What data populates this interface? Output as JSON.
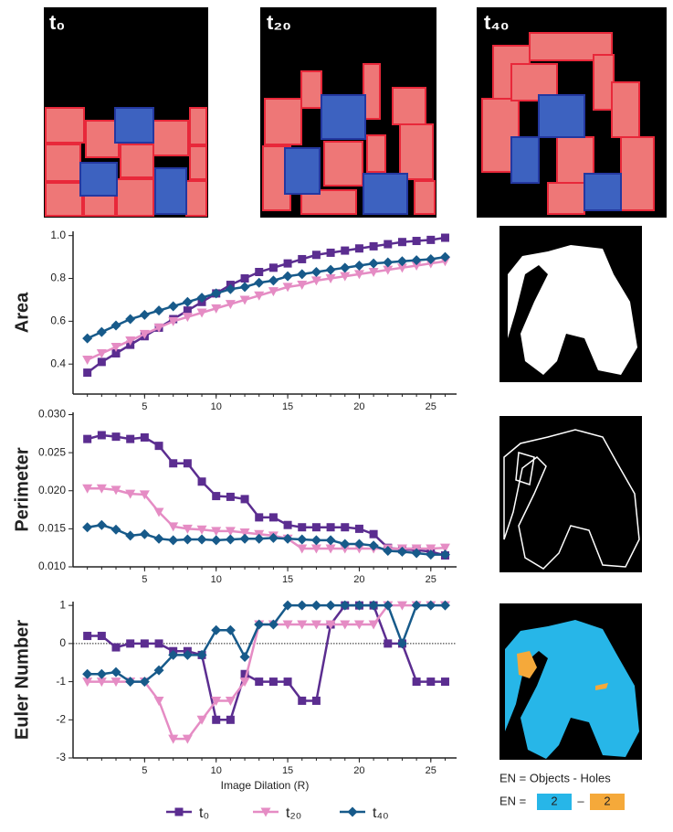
{
  "panels": [
    "t₀",
    "t₂₀",
    "t₄₀"
  ],
  "en_formula": {
    "definition": "EN = Objects - Holes",
    "prefix": "EN =",
    "objects": "2",
    "dash": "–",
    "holes": "2"
  },
  "chart_data": [
    {
      "type": "line",
      "ylabel": "Area",
      "x": [
        1,
        2,
        3,
        4,
        5,
        6,
        7,
        8,
        9,
        10,
        11,
        12,
        13,
        14,
        15,
        16,
        17,
        18,
        19,
        20,
        21,
        22,
        23,
        24,
        25,
        26
      ],
      "xlim": [
        0,
        26.8
      ],
      "xticks": [
        5,
        10,
        15,
        20,
        25
      ],
      "ylim": [
        0.26,
        1.02
      ],
      "yticks": [
        0.4,
        0.6,
        0.8,
        {
          "value": 1,
          "label": "1.0"
        }
      ],
      "series": [
        {
          "color": "#5b2d90",
          "marker": "square",
          "values": [
            0.36,
            0.41,
            0.45,
            0.49,
            0.53,
            0.57,
            0.61,
            0.65,
            0.69,
            0.73,
            0.77,
            0.8,
            0.83,
            0.85,
            0.87,
            0.89,
            0.91,
            0.92,
            0.93,
            0.94,
            0.95,
            0.96,
            0.97,
            0.975,
            0.98,
            0.99
          ]
        },
        {
          "color": "#e58cc4",
          "marker": "triangle-down",
          "values": [
            0.42,
            0.45,
            0.48,
            0.51,
            0.54,
            0.57,
            0.6,
            0.62,
            0.64,
            0.66,
            0.68,
            0.7,
            0.72,
            0.74,
            0.76,
            0.77,
            0.79,
            0.8,
            0.81,
            0.82,
            0.83,
            0.84,
            0.85,
            0.86,
            0.87,
            0.88
          ]
        },
        {
          "color": "#175a8a",
          "marker": "diamond",
          "values": [
            0.52,
            0.55,
            0.58,
            0.61,
            0.63,
            0.65,
            0.67,
            0.69,
            0.71,
            0.73,
            0.75,
            0.76,
            0.78,
            0.79,
            0.81,
            0.82,
            0.83,
            0.84,
            0.85,
            0.86,
            0.87,
            0.875,
            0.88,
            0.885,
            0.89,
            0.9
          ]
        }
      ]
    },
    {
      "type": "line",
      "ylabel": "Perimeter",
      "x": [
        1,
        2,
        3,
        4,
        5,
        6,
        7,
        8,
        9,
        10,
        11,
        12,
        13,
        14,
        15,
        16,
        17,
        18,
        19,
        20,
        21,
        22,
        23,
        24,
        25,
        26
      ],
      "xlim": [
        0,
        26.8
      ],
      "xticks": [
        5,
        10,
        15,
        20,
        25
      ],
      "ylim": [
        0.01,
        0.0303
      ],
      "yticks": [
        {
          "value": 0.01,
          "label": "0.010"
        },
        {
          "value": 0.015,
          "label": "0.015"
        },
        {
          "value": 0.02,
          "label": "0.020"
        },
        {
          "value": 0.025,
          "label": "0.025"
        },
        {
          "value": 0.03,
          "label": "0.030"
        }
      ],
      "series": [
        {
          "color": "#5b2d90",
          "marker": "square",
          "values": [
            0.0268,
            0.0273,
            0.0271,
            0.0268,
            0.027,
            0.0259,
            0.0236,
            0.0236,
            0.0212,
            0.0193,
            0.0192,
            0.0189,
            0.0165,
            0.0165,
            0.0155,
            0.0152,
            0.0152,
            0.0152,
            0.0152,
            0.015,
            0.0143,
            0.0125,
            0.0123,
            0.0122,
            0.012,
            0.0115
          ]
        },
        {
          "color": "#e58cc4",
          "marker": "triangle-down",
          "values": [
            0.0203,
            0.0203,
            0.0201,
            0.0196,
            0.0195,
            0.0172,
            0.0153,
            0.015,
            0.0149,
            0.0147,
            0.0147,
            0.0145,
            0.0143,
            0.0141,
            0.0137,
            0.0124,
            0.0124,
            0.0124,
            0.0124,
            0.0124,
            0.0124,
            0.0124,
            0.0124,
            0.0124,
            0.0124,
            0.0125
          ]
        },
        {
          "color": "#175a8a",
          "marker": "diamond",
          "values": [
            0.0152,
            0.0155,
            0.0149,
            0.0141,
            0.0143,
            0.0137,
            0.0135,
            0.0136,
            0.0136,
            0.0135,
            0.0136,
            0.0137,
            0.0137,
            0.0138,
            0.0137,
            0.0136,
            0.0135,
            0.0135,
            0.013,
            0.013,
            0.0128,
            0.0121,
            0.012,
            0.0118,
            0.0116,
            0.0116
          ]
        }
      ]
    },
    {
      "type": "line",
      "ylabel": "Euler Number",
      "xlabel": "Image Dilation (R)",
      "x": [
        1,
        2,
        3,
        4,
        5,
        6,
        7,
        8,
        9,
        10,
        11,
        12,
        13,
        14,
        15,
        16,
        17,
        18,
        19,
        20,
        21,
        22,
        23,
        24,
        25,
        26
      ],
      "xlim": [
        0,
        26.8
      ],
      "xticks": [
        5,
        10,
        15,
        20,
        25
      ],
      "ylim": [
        -3,
        1.1
      ],
      "yticks": [
        -3,
        -2,
        -1,
        0,
        1
      ],
      "reference_line": 0,
      "series": [
        {
          "name": "t₀",
          "color": "#5b2d90",
          "marker": "square",
          "values": [
            0.2,
            0.2,
            -0.1,
            0,
            0,
            0,
            -0.2,
            -0.2,
            -0.3,
            -2,
            -2,
            -0.8,
            -1,
            -1,
            -1,
            -1.5,
            -1.5,
            0.5,
            1,
            1,
            1,
            0,
            0,
            -1,
            -1,
            -1
          ]
        },
        {
          "name": "t₂₀",
          "color": "#e58cc4",
          "marker": "triangle-down",
          "values": [
            -1,
            -1,
            -1,
            -1,
            -1,
            -1.5,
            -2.5,
            -2.5,
            -2,
            -1.5,
            -1.5,
            -1,
            0.5,
            0.5,
            0.5,
            0.5,
            0.5,
            0.5,
            0.5,
            0.5,
            0.5,
            1,
            1,
            1,
            1,
            1
          ]
        },
        {
          "name": "t₄₀",
          "color": "#175a8a",
          "marker": "diamond",
          "values": [
            -0.8,
            -0.8,
            -0.75,
            -1,
            -1,
            -0.7,
            -0.3,
            -0.3,
            -0.3,
            0.35,
            0.35,
            -0.35,
            0.5,
            0.5,
            1,
            1,
            1,
            1,
            1,
            1,
            1,
            1,
            0,
            1,
            1,
            1
          ]
        }
      ]
    }
  ]
}
